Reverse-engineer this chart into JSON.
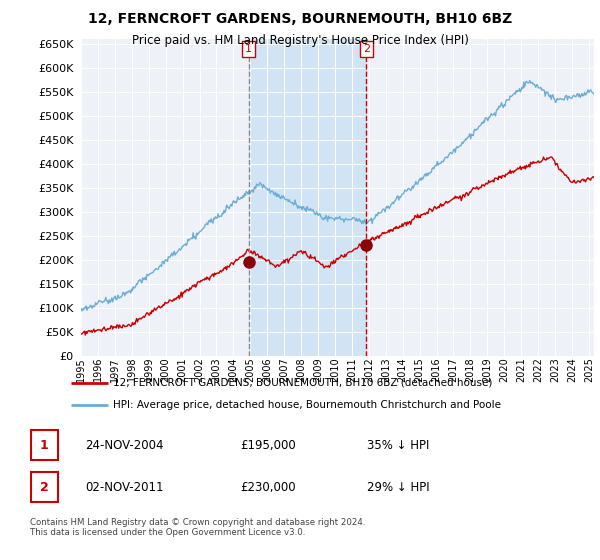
{
  "title": "12, FERNCROFT GARDENS, BOURNEMOUTH, BH10 6BZ",
  "subtitle": "Price paid vs. HM Land Registry's House Price Index (HPI)",
  "legend_line1": "12, FERNCROFT GARDENS, BOURNEMOUTH, BH10 6BZ (detached house)",
  "legend_line2": "HPI: Average price, detached house, Bournemouth Christchurch and Poole",
  "table_rows": [
    {
      "num": "1",
      "date": "24-NOV-2004",
      "price": "£195,000",
      "hpi": "35% ↓ HPI"
    },
    {
      "num": "2",
      "date": "02-NOV-2011",
      "price": "£230,000",
      "hpi": "29% ↓ HPI"
    }
  ],
  "footnote": "Contains HM Land Registry data © Crown copyright and database right 2024.\nThis data is licensed under the Open Government Licence v3.0.",
  "hpi_color": "#6baed6",
  "price_color": "#cc0000",
  "marker_color": "#8b0000",
  "background_color": "#ffffff",
  "plot_bg_color": "#eef2f8",
  "shade_color": "#d0e4f5",
  "grid_color": "#ffffff",
  "ylim": [
    0,
    660000
  ],
  "yticks": [
    0,
    50000,
    100000,
    150000,
    200000,
    250000,
    300000,
    350000,
    400000,
    450000,
    500000,
    550000,
    600000,
    650000
  ],
  "sale1_x": 2004.9,
  "sale1_y": 195000,
  "sale2_x": 2011.85,
  "sale2_y": 230000,
  "vline1_x": 2004.9,
  "vline2_x": 2011.85,
  "xmin": 1995,
  "xmax": 2025.3
}
